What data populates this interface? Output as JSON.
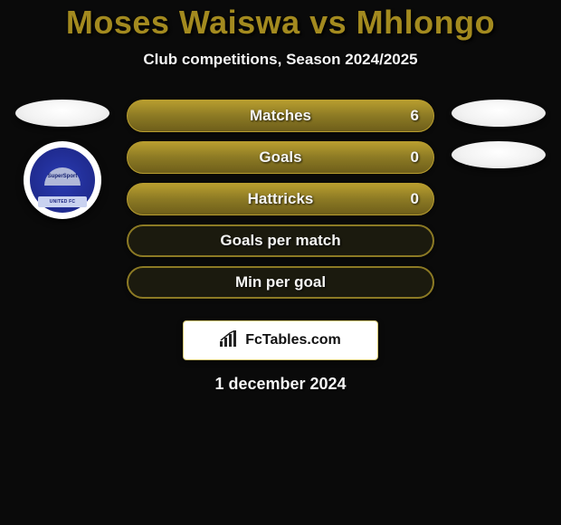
{
  "title": "Moses Waiswa vs Mhlongo",
  "subtitle": "Club competitions, Season 2024/2025",
  "date": "1 december 2024",
  "footer_brand": "FcTables.com",
  "colors": {
    "accent": "#a38a1f",
    "pill_filled_bg": "#8c7a24",
    "pill_filled_border": "#b89d2f",
    "pill_empty_bg": "#1b1a0e",
    "pill_empty_border": "#8c7a24",
    "page_bg": "#0a0a0a"
  },
  "crest": {
    "top_text": "SuperSport",
    "bottom_text": "UNITED FC"
  },
  "stats": [
    {
      "label": "Matches",
      "value": "6",
      "has_value": true,
      "filled": true
    },
    {
      "label": "Goals",
      "value": "0",
      "has_value": true,
      "filled": true
    },
    {
      "label": "Hattricks",
      "value": "0",
      "has_value": true,
      "filled": true
    },
    {
      "label": "Goals per match",
      "value": "",
      "has_value": false,
      "filled": false
    },
    {
      "label": "Min per goal",
      "value": "",
      "has_value": false,
      "filled": false
    }
  ],
  "left_items": [
    {
      "type": "ellipse"
    },
    {
      "type": "crest"
    }
  ],
  "right_items": [
    {
      "type": "ellipse"
    },
    {
      "type": "ellipse"
    }
  ]
}
